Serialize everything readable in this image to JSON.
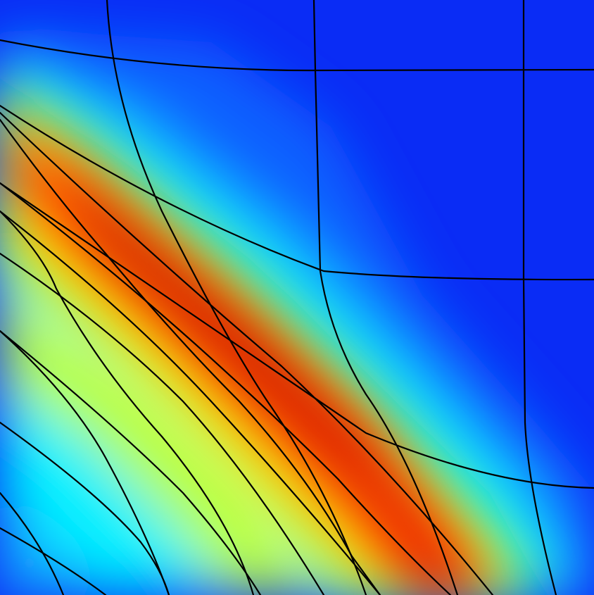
{
  "figure": {
    "colormap": "jet",
    "background_color": "#0a2cf5",
    "band_colors": {
      "deep_blue": "#0a2cf5",
      "blue": "#1060ff",
      "light_blue": "#14b4ff",
      "cyan": "#00f0ff",
      "lime": "#b8ff3c",
      "yellow": "#ffff00",
      "orange": "#ff9800",
      "dark_orange": "#ff6400",
      "red": "#ff0000",
      "dark_red": "#c00000"
    },
    "mesh_line_color": "#000000",
    "grid_visible": true,
    "axes_visible": false
  }
}
